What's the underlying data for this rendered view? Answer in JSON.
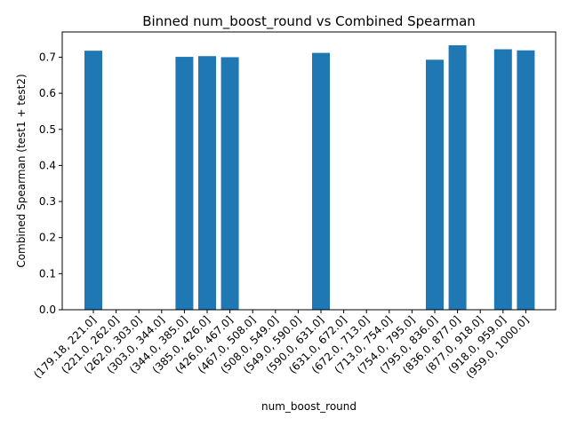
{
  "chart_data": {
    "type": "bar",
    "title": "Binned num_boost_round vs Combined Spearman",
    "xlabel": "num_boost_round",
    "ylabel": "Combined Spearman (test1 + test2)",
    "categories": [
      "(179.18, 221.0]",
      "(221.0, 262.0]",
      "(262.0, 303.0]",
      "(303.0, 344.0]",
      "(344.0, 385.0]",
      "(385.0, 426.0]",
      "(426.0, 467.0]",
      "(467.0, 508.0]",
      "(508.0, 549.0]",
      "(549.0, 590.0]",
      "(590.0, 631.0]",
      "(631.0, 672.0]",
      "(672.0, 713.0]",
      "(713.0, 754.0]",
      "(754.0, 795.0]",
      "(795.0, 836.0]",
      "(836.0, 877.0]",
      "(877.0, 918.0]",
      "(918.0, 959.0]",
      "(959.0, 1000.0]"
    ],
    "values": [
      0.718,
      null,
      null,
      null,
      0.701,
      0.703,
      0.7,
      null,
      null,
      null,
      0.712,
      null,
      null,
      null,
      null,
      0.693,
      0.733,
      null,
      0.722,
      0.719
    ],
    "ylim": [
      0,
      0.77
    ],
    "yticks": [
      0.0,
      0.1,
      0.2,
      0.3,
      0.4,
      0.5,
      0.6,
      0.7
    ],
    "ytick_labels": [
      "0.0",
      "0.1",
      "0.2",
      "0.3",
      "0.4",
      "0.5",
      "0.6",
      "0.7"
    ],
    "bar_color": "#1f77b4",
    "grid": false,
    "legend": "none"
  }
}
